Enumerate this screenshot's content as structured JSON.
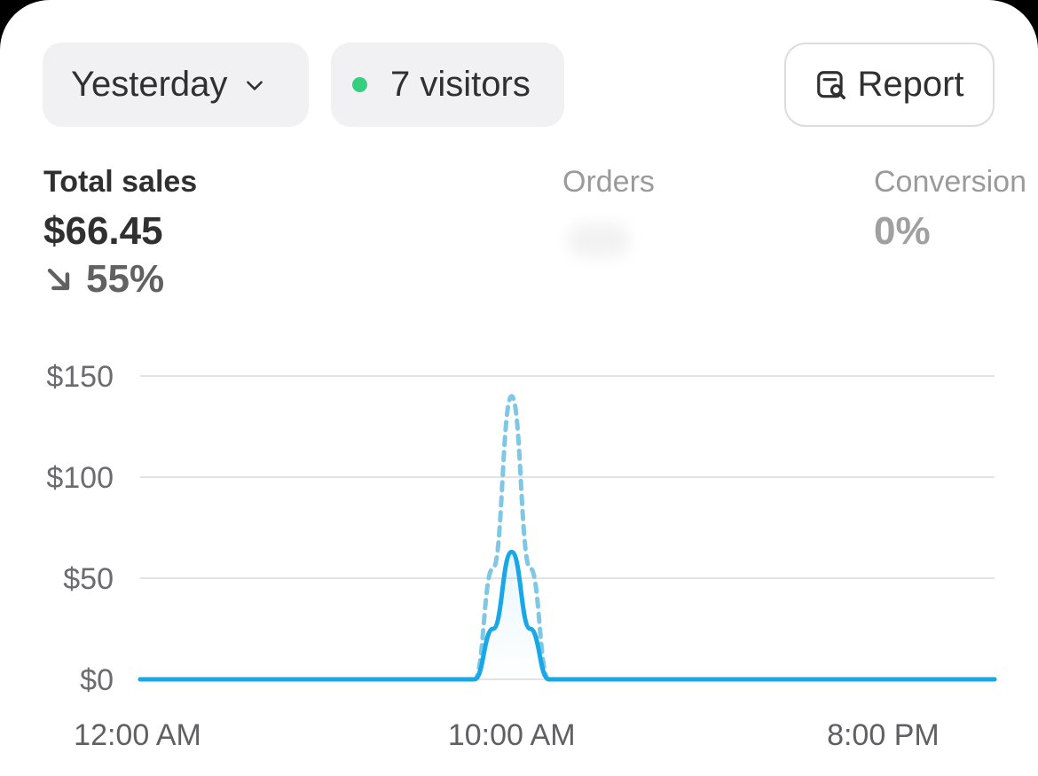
{
  "filters": {
    "date_label": "Yesterday",
    "visitors_label": "7 visitors",
    "live_dot_color": "#35d07f"
  },
  "report_button": {
    "label": "Report",
    "icon": "report-search-icon"
  },
  "metrics": {
    "total_sales": {
      "label": "Total sales",
      "value": "$66.45",
      "change": "55%",
      "change_direction": "down"
    },
    "orders": {
      "label": "Orders"
    },
    "conversion": {
      "label": "Conversion",
      "value": "0%"
    }
  },
  "chart_data": {
    "type": "line",
    "x_tick_labels": [
      "12:00 AM",
      "10:00 AM",
      "8:00 PM"
    ],
    "y_tick_labels": [
      "$150",
      "$100",
      "$50",
      "$0"
    ],
    "ylim": [
      0,
      150
    ],
    "xlim_hours": [
      0,
      23
    ],
    "x_hours": [
      0,
      9,
      9.5,
      10,
      10.5,
      11,
      23
    ],
    "grid": true,
    "series": [
      {
        "style": "solid",
        "color": "#1aa7e6",
        "values": [
          0,
          0,
          25,
          63,
          25,
          0,
          0
        ]
      },
      {
        "style": "dashed",
        "color": "#7ec8e6",
        "values": [
          0,
          0,
          55,
          140,
          55,
          0,
          0
        ]
      }
    ]
  }
}
